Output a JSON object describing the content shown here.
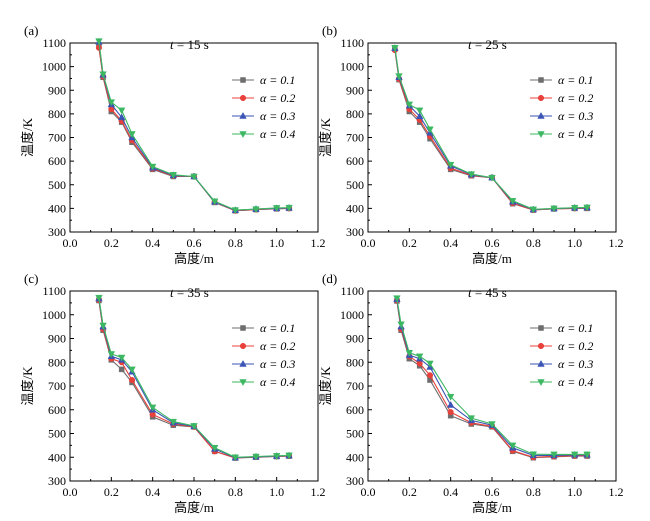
{
  "chart_data": [
    {
      "type": "line",
      "panel_label": "(a)",
      "annotation": {
        "var": "t",
        "rest": " = 15 s"
      },
      "xlabel": "高度/m",
      "ylabel": "温度/K",
      "xlim": [
        0.0,
        1.2
      ],
      "ylim": [
        300,
        1100
      ],
      "xticks": [
        "0.0",
        "0.2",
        "0.4",
        "0.6",
        "0.8",
        "1.0",
        "1.2"
      ],
      "yticks": [
        "300",
        "400",
        "500",
        "600",
        "700",
        "800",
        "900",
        "1000",
        "1100"
      ],
      "legend_position": "right",
      "x": [
        0.14,
        0.16,
        0.2,
        0.25,
        0.3,
        0.4,
        0.5,
        0.6,
        0.7,
        0.8,
        0.9,
        1.0,
        1.06
      ],
      "series": [
        {
          "name": "α = 0.1",
          "color": "#6d6d6d",
          "marker": "square",
          "values": [
            1085,
            955,
            810,
            765,
            680,
            565,
            535,
            535,
            425,
            390,
            395,
            398,
            400
          ]
        },
        {
          "name": "α = 0.2",
          "color": "#e8403a",
          "marker": "circle",
          "values": [
            1080,
            958,
            820,
            770,
            688,
            568,
            538,
            535,
            427,
            390,
            395,
            399,
            400
          ]
        },
        {
          "name": "α = 0.3",
          "color": "#3a55b4",
          "marker": "triangle-up",
          "values": [
            1105,
            965,
            840,
            785,
            700,
            572,
            540,
            535,
            428,
            392,
            397,
            400,
            402
          ]
        },
        {
          "name": "α = 0.4",
          "color": "#3cb862",
          "marker": "triangle-down",
          "values": [
            1108,
            968,
            850,
            815,
            715,
            577,
            542,
            535,
            430,
            393,
            397,
            402,
            403
          ]
        }
      ]
    },
    {
      "type": "line",
      "panel_label": "(b)",
      "annotation": {
        "var": "t",
        "rest": " = 25 s"
      },
      "xlabel": "高度/m",
      "ylabel": "温度/K",
      "xlim": [
        0.0,
        1.2
      ],
      "ylim": [
        300,
        1100
      ],
      "xticks": [
        "0.0",
        "0.2",
        "0.4",
        "0.6",
        "0.8",
        "1.0",
        "1.2"
      ],
      "yticks": [
        "300",
        "400",
        "500",
        "600",
        "700",
        "800",
        "900",
        "1000",
        "1100"
      ],
      "legend_position": "right",
      "x": [
        0.13,
        0.15,
        0.2,
        0.25,
        0.3,
        0.4,
        0.5,
        0.6,
        0.7,
        0.8,
        0.9,
        1.0,
        1.06
      ],
      "series": [
        {
          "name": "α = 0.1",
          "color": "#6d6d6d",
          "marker": "square",
          "values": [
            1075,
            945,
            810,
            765,
            695,
            565,
            538,
            530,
            420,
            393,
            398,
            400,
            400
          ]
        },
        {
          "name": "α = 0.2",
          "color": "#e8403a",
          "marker": "circle",
          "values": [
            1070,
            948,
            820,
            775,
            705,
            570,
            540,
            530,
            422,
            393,
            398,
            400,
            401
          ]
        },
        {
          "name": "α = 0.3",
          "color": "#3a55b4",
          "marker": "triangle-up",
          "values": [
            1078,
            955,
            835,
            790,
            720,
            580,
            543,
            530,
            428,
            395,
            399,
            402,
            403
          ]
        },
        {
          "name": "α = 0.4",
          "color": "#3cb862",
          "marker": "triangle-down",
          "values": [
            1080,
            960,
            840,
            815,
            735,
            585,
            545,
            530,
            432,
            396,
            400,
            403,
            404
          ]
        }
      ]
    },
    {
      "type": "line",
      "panel_label": "(c)",
      "annotation": {
        "var": "t",
        "rest": " = 35 s"
      },
      "xlabel": "高度/m",
      "ylabel": "温度/K",
      "xlim": [
        0.0,
        1.2
      ],
      "ylim": [
        300,
        1100
      ],
      "xticks": [
        "0.0",
        "0.2",
        "0.4",
        "0.6",
        "0.8",
        "1.0",
        "1.2"
      ],
      "yticks": [
        "300",
        "400",
        "500",
        "600",
        "700",
        "800",
        "900",
        "1000",
        "1100"
      ],
      "legend_position": "right",
      "x": [
        0.14,
        0.16,
        0.2,
        0.25,
        0.3,
        0.4,
        0.5,
        0.6,
        0.7,
        0.8,
        0.9,
        1.0,
        1.06
      ],
      "series": [
        {
          "name": "α = 0.1",
          "color": "#6d6d6d",
          "marker": "square",
          "values": [
            1060,
            935,
            810,
            770,
            715,
            570,
            535,
            528,
            425,
            397,
            400,
            403,
            405
          ]
        },
        {
          "name": "α = 0.2",
          "color": "#e8403a",
          "marker": "circle",
          "values": [
            1062,
            940,
            815,
            800,
            725,
            580,
            540,
            528,
            425,
            397,
            401,
            404,
            405
          ]
        },
        {
          "name": "α = 0.3",
          "color": "#3a55b4",
          "marker": "triangle-up",
          "values": [
            1068,
            950,
            825,
            810,
            760,
            600,
            545,
            530,
            435,
            398,
            402,
            405,
            407
          ]
        },
        {
          "name": "α = 0.4",
          "color": "#3cb862",
          "marker": "triangle-down",
          "values": [
            1072,
            955,
            835,
            820,
            770,
            610,
            550,
            532,
            440,
            400,
            403,
            406,
            408
          ]
        }
      ]
    },
    {
      "type": "line",
      "panel_label": "(d)",
      "annotation": {
        "var": "t",
        "rest": " = 45 s"
      },
      "xlabel": "高度/m",
      "ylabel": "温度/K",
      "xlim": [
        0.0,
        1.2
      ],
      "ylim": [
        300,
        1100
      ],
      "xticks": [
        "0.0",
        "0.2",
        "0.4",
        "0.6",
        "0.8",
        "1.0",
        "1.2"
      ],
      "yticks": [
        "300",
        "400",
        "500",
        "600",
        "700",
        "800",
        "900",
        "1000",
        "1100"
      ],
      "legend_position": "right",
      "x": [
        0.14,
        0.16,
        0.2,
        0.25,
        0.3,
        0.4,
        0.5,
        0.6,
        0.7,
        0.8,
        0.9,
        1.0,
        1.06
      ],
      "series": [
        {
          "name": "α = 0.1",
          "color": "#6d6d6d",
          "marker": "square",
          "values": [
            1058,
            935,
            815,
            785,
            725,
            575,
            540,
            528,
            425,
            398,
            402,
            405,
            405
          ]
        },
        {
          "name": "α = 0.2",
          "color": "#e8403a",
          "marker": "circle",
          "values": [
            1060,
            940,
            825,
            795,
            745,
            590,
            545,
            530,
            428,
            400,
            404,
            406,
            407
          ]
        },
        {
          "name": "α = 0.3",
          "color": "#3a55b4",
          "marker": "triangle-up",
          "values": [
            1065,
            950,
            830,
            815,
            780,
            620,
            555,
            535,
            440,
            408,
            408,
            410,
            410
          ]
        },
        {
          "name": "α = 0.4",
          "color": "#3cb862",
          "marker": "triangle-down",
          "values": [
            1070,
            960,
            840,
            825,
            795,
            655,
            565,
            540,
            450,
            413,
            412,
            412,
            412
          ]
        }
      ]
    }
  ]
}
